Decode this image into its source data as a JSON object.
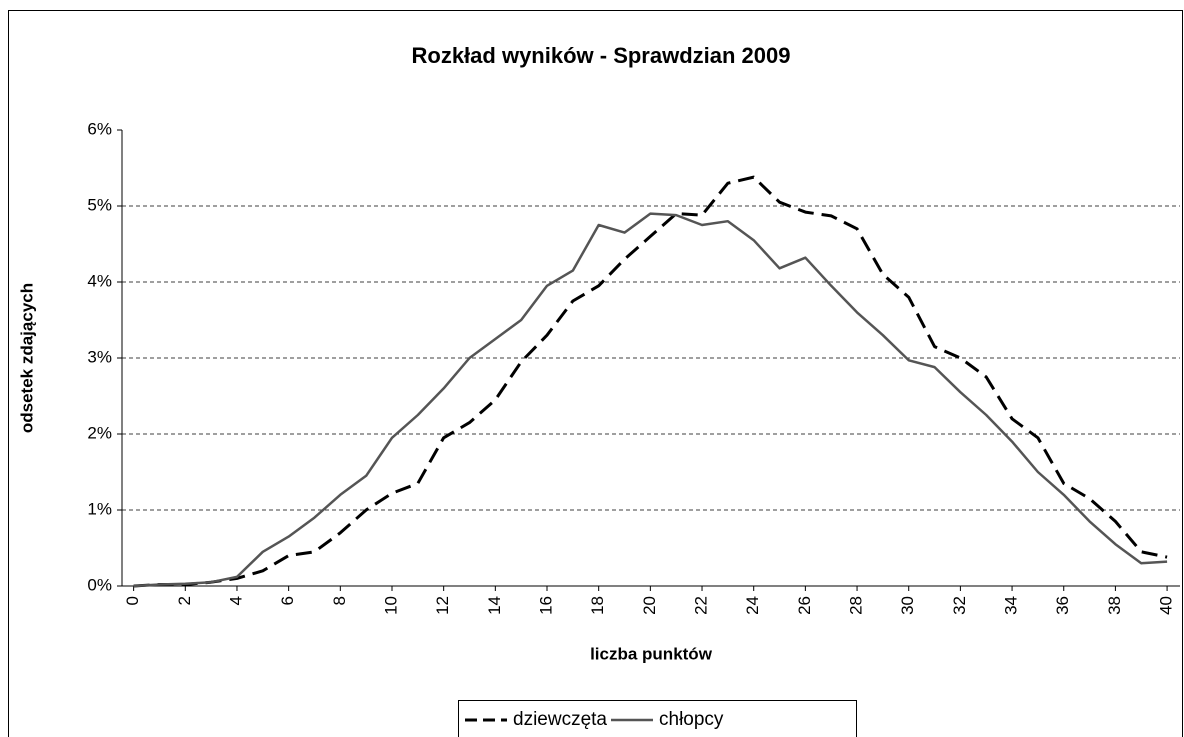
{
  "chart_data": {
    "type": "line",
    "title": "Rozkład wyników - Sprawdzian 2009",
    "x_label": "liczba punktów",
    "y_label": "odsetek zdających",
    "x": [
      0,
      1,
      2,
      3,
      4,
      5,
      6,
      7,
      8,
      9,
      10,
      11,
      12,
      13,
      14,
      15,
      16,
      17,
      18,
      19,
      20,
      21,
      22,
      23,
      24,
      25,
      26,
      27,
      28,
      29,
      30,
      31,
      32,
      33,
      34,
      35,
      36,
      37,
      38,
      39,
      40
    ],
    "xlim": [
      -0.45,
      40.5
    ],
    "xticks": [
      0,
      2,
      4,
      6,
      8,
      10,
      12,
      14,
      16,
      18,
      20,
      22,
      24,
      26,
      28,
      30,
      32,
      34,
      36,
      38,
      40
    ],
    "ylim": [
      0,
      6
    ],
    "yticks": [
      {
        "value": 0,
        "label": "0%"
      },
      {
        "value": 1,
        "label": "1%"
      },
      {
        "value": 2,
        "label": "2%"
      },
      {
        "value": 3,
        "label": "3%"
      },
      {
        "value": 4,
        "label": "4%"
      },
      {
        "value": 5,
        "label": "5%"
      },
      {
        "value": 6,
        "label": "6%"
      }
    ],
    "grid": true,
    "legend": "bottom",
    "series": [
      {
        "name": "dziewczęta",
        "color": "#000000",
        "dash": true,
        "values": [
          0,
          0.02,
          0.02,
          0.05,
          0.1,
          0.2,
          0.4,
          0.45,
          0.7,
          1.0,
          1.22,
          1.35,
          1.95,
          2.15,
          2.45,
          2.95,
          3.3,
          3.75,
          3.95,
          4.3,
          4.6,
          4.9,
          4.88,
          5.3,
          5.38,
          5.05,
          4.92,
          4.87,
          4.7,
          4.1,
          3.8,
          3.15,
          3.0,
          2.75,
          2.2,
          1.95,
          1.35,
          1.15,
          0.85,
          0.45,
          0.38
        ]
      },
      {
        "name": "chłopcy",
        "color": "#555555",
        "dash": false,
        "values": [
          0,
          0.02,
          0.03,
          0.05,
          0.12,
          0.45,
          0.65,
          0.9,
          1.2,
          1.45,
          1.95,
          2.25,
          2.6,
          3.0,
          3.25,
          3.5,
          3.95,
          4.15,
          4.75,
          4.65,
          4.9,
          4.88,
          4.75,
          4.8,
          4.55,
          4.18,
          4.32,
          3.95,
          3.6,
          3.3,
          2.97,
          2.88,
          2.55,
          2.25,
          1.9,
          1.5,
          1.2,
          0.85,
          0.55,
          0.3,
          0.32
        ]
      }
    ]
  }
}
